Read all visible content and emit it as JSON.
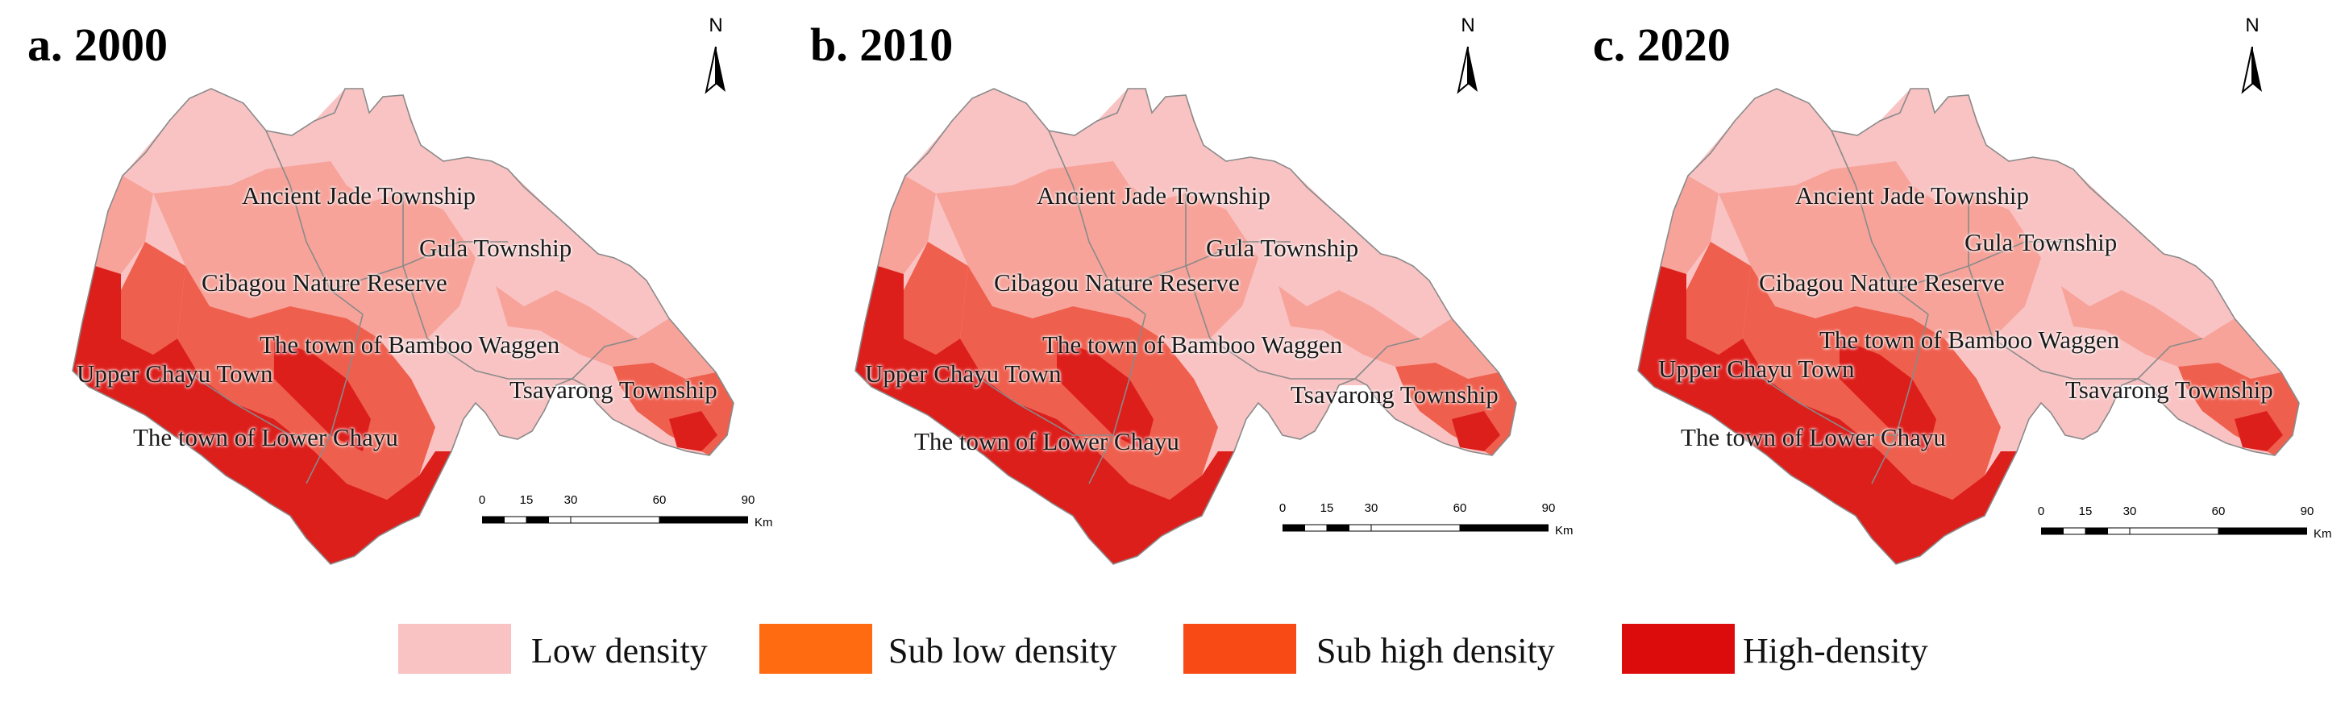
{
  "panels": [
    {
      "title": "a. 2000",
      "places": {
        "ancient_jade": "Ancient Jade Township",
        "gula": "Gula Township",
        "cibagou": "Cibagou Nature Reserve",
        "bamboo": "The town of Bamboo Waggen",
        "upper_chayu": "Upper Chayu Town",
        "tsavarong": "Tsavarong Township",
        "lower_chayu": "The town of Lower Chayu"
      }
    },
    {
      "title": "b. 2010",
      "places": {
        "ancient_jade": "Ancient Jade Township",
        "gula": "Gula Township",
        "cibagou": "Cibagou Nature Reserve",
        "bamboo": "The town of Bamboo Waggen",
        "upper_chayu": "Upper Chayu Town",
        "tsavarong": "Tsavarong Township",
        "lower_chayu": "The town of Lower Chayu"
      }
    },
    {
      "title": "c. 2020",
      "places": {
        "ancient_jade": "Ancient Jade Township",
        "gula": "Gula Township",
        "cibagou": "Cibagou Nature Reserve",
        "bamboo": "The town of Bamboo Waggen",
        "upper_chayu": "Upper Chayu Town",
        "tsavarong": "Tsavarong Township",
        "lower_chayu": "The town of Lower Chayu"
      }
    }
  ],
  "north_arrow": {
    "letter": "N",
    "icon": "north-arrow-icon"
  },
  "scale_bar": {
    "ticks": [
      "0",
      "15",
      "30",
      "60",
      "90"
    ],
    "unit": "Km"
  },
  "legend": [
    {
      "label": "Low density",
      "color": "#f9c3c3"
    },
    {
      "label": "Sub low density",
      "color": "#ff6b10"
    },
    {
      "label": "Sub high density",
      "color": "#f74a14"
    },
    {
      "label": "High-density",
      "color": "#dd0c0c"
    }
  ],
  "map_colors": {
    "low": "#f9c3c3",
    "sub_low": "#f7a39a",
    "sub_high": "#ef5f4e",
    "high": "#dd1f1c",
    "boundary": "#8a8a8a"
  }
}
